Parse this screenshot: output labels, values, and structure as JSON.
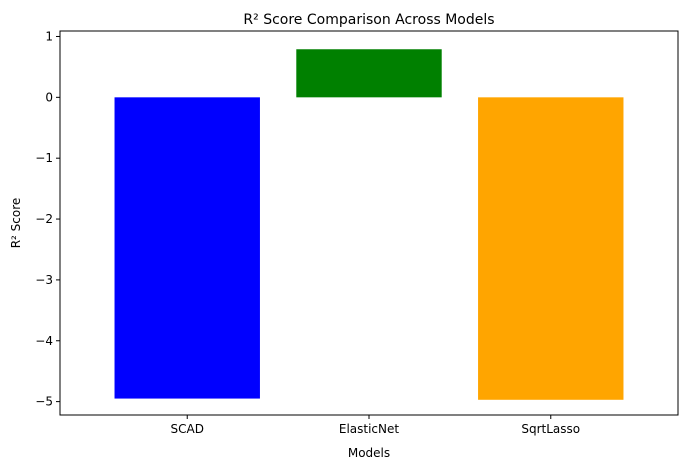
{
  "chart_data": {
    "type": "bar",
    "title": "R² Score Comparison Across Models",
    "xlabel": "Models",
    "ylabel": "R² Score",
    "categories": [
      "SCAD",
      "ElasticNet",
      "SqrtLasso"
    ],
    "values": [
      -4.95,
      0.79,
      -4.97
    ],
    "colors": [
      "#0000ff",
      "#008000",
      "#ffa500"
    ],
    "ylim": [
      -5.22,
      1.09
    ],
    "yticks": [
      1,
      0,
      -1,
      -2,
      -3,
      -4,
      -5
    ],
    "ytick_labels": [
      "1",
      "0",
      "−1",
      "−2",
      "−3",
      "−4",
      "−5"
    ],
    "grid": false,
    "legend": "none"
  }
}
